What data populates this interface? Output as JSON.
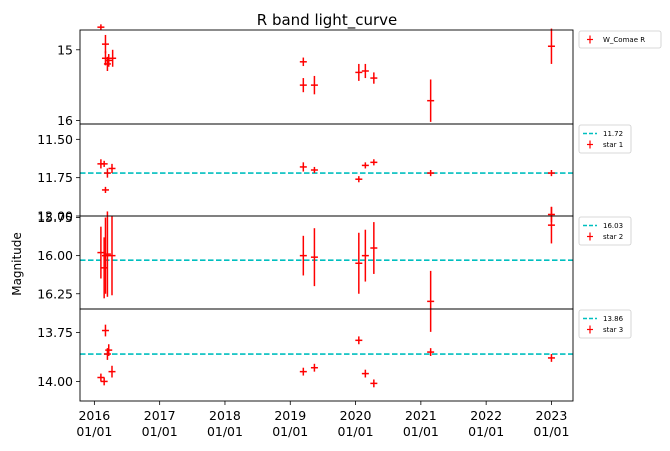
{
  "chart_data": {
    "type": "scatter",
    "title": "R band light_curve",
    "ylabel": "Magnitude",
    "x_ticks": [
      "2016\n01/01",
      "2017\n01/01",
      "2018\n01/01",
      "2019\n01/01",
      "2020\n01/01",
      "2021\n01/01",
      "2022\n01/01",
      "2023\n01/01"
    ],
    "x_tick_years": [
      2016,
      2017,
      2018,
      2019,
      2020,
      2021,
      2022,
      2023
    ],
    "xlim": [
      2015.78,
      2023.33
    ],
    "colors": {
      "data": "#ff0000",
      "reference": "#00bfbf"
    },
    "panels": [
      {
        "name": "W_Comae R",
        "legend_label": "W_Comae R",
        "ylim": [
          16.05,
          14.72
        ],
        "inverted": true,
        "yticks": [
          15,
          16
        ],
        "yticklabels": [
          "15",
          "16"
        ],
        "reference": null,
        "points": [
          {
            "x": 2016.1,
            "y": 14.68,
            "err": 0.04
          },
          {
            "x": 2016.17,
            "y": 14.92,
            "err": 0.13
          },
          {
            "x": 2016.17,
            "y": 15.12,
            "err": 0.1
          },
          {
            "x": 2016.2,
            "y": 15.2,
            "err": 0.1
          },
          {
            "x": 2016.22,
            "y": 15.15,
            "err": 0.09
          },
          {
            "x": 2016.28,
            "y": 15.12,
            "err": 0.12
          },
          {
            "x": 2019.2,
            "y": 15.17,
            "err": 0.06
          },
          {
            "x": 2019.2,
            "y": 15.5,
            "err": 0.1
          },
          {
            "x": 2019.37,
            "y": 15.5,
            "err": 0.13
          },
          {
            "x": 2020.05,
            "y": 15.32,
            "err": 0.12
          },
          {
            "x": 2020.15,
            "y": 15.3,
            "err": 0.1
          },
          {
            "x": 2020.28,
            "y": 15.4,
            "err": 0.08
          },
          {
            "x": 2021.15,
            "y": 15.72,
            "err": 0.3
          },
          {
            "x": 2023.0,
            "y": 14.95,
            "err": 0.25
          }
        ]
      },
      {
        "name": "star 1",
        "legend_label": "star 1",
        "ylim": [
          12.0,
          11.4
        ],
        "inverted": true,
        "yticks": [
          11.5,
          11.75,
          12.0
        ],
        "yticklabels": [
          "11.50",
          "11.75",
          "12.00"
        ],
        "reference": {
          "value": 11.72,
          "label": "11.72"
        },
        "points": [
          {
            "x": 2016.1,
            "y": 11.66,
            "err": 0.03
          },
          {
            "x": 2016.15,
            "y": 11.66,
            "err": 0.02
          },
          {
            "x": 2016.17,
            "y": 11.83,
            "err": 0.02
          },
          {
            "x": 2016.2,
            "y": 11.72,
            "err": 0.03
          },
          {
            "x": 2016.27,
            "y": 11.69,
            "err": 0.03
          },
          {
            "x": 2019.2,
            "y": 11.68,
            "err": 0.03
          },
          {
            "x": 2019.37,
            "y": 11.7,
            "err": 0.02
          },
          {
            "x": 2020.05,
            "y": 11.76,
            "err": 0.02
          },
          {
            "x": 2020.15,
            "y": 11.67,
            "err": 0.02
          },
          {
            "x": 2020.28,
            "y": 11.65,
            "err": 0.02
          },
          {
            "x": 2021.15,
            "y": 11.72,
            "err": 0.02
          },
          {
            "x": 2023.0,
            "y": 11.72,
            "err": 0.02
          }
        ]
      },
      {
        "name": "star 2",
        "legend_label": "star 2",
        "ylim": [
          16.35,
          15.74
        ],
        "inverted": true,
        "yticks": [
          15.75,
          16.0,
          16.25
        ],
        "yticklabels": [
          "15.75",
          "16.00",
          "16.25"
        ],
        "reference": {
          "value": 16.03,
          "label": "16.03"
        },
        "points": [
          {
            "x": 2016.1,
            "y": 15.98,
            "err": 0.17
          },
          {
            "x": 2016.15,
            "y": 16.08,
            "err": 0.2
          },
          {
            "x": 2016.17,
            "y": 16.0,
            "err": 0.25
          },
          {
            "x": 2016.2,
            "y": 15.99,
            "err": 0.28
          },
          {
            "x": 2016.27,
            "y": 16.0,
            "err": 0.26
          },
          {
            "x": 2019.2,
            "y": 16.0,
            "err": 0.13
          },
          {
            "x": 2019.37,
            "y": 16.01,
            "err": 0.19
          },
          {
            "x": 2020.05,
            "y": 16.05,
            "err": 0.2
          },
          {
            "x": 2020.15,
            "y": 16.0,
            "err": 0.17
          },
          {
            "x": 2020.28,
            "y": 15.95,
            "err": 0.17
          },
          {
            "x": 2021.15,
            "y": 16.3,
            "err": 0.2
          },
          {
            "x": 2023.0,
            "y": 15.8,
            "err": 0.12
          },
          {
            "x": 2023.0,
            "y": 15.73,
            "err": 0.05
          }
        ]
      },
      {
        "name": "star 3",
        "legend_label": "star 3",
        "ylim": [
          14.1,
          13.63
        ],
        "inverted": true,
        "yticks": [
          13.75,
          14.0
        ],
        "yticklabels": [
          "13.75",
          "14.00"
        ],
        "reference": {
          "value": 13.86,
          "label": "13.86"
        },
        "points": [
          {
            "x": 2016.1,
            "y": 13.98,
            "err": 0.02
          },
          {
            "x": 2016.15,
            "y": 14.0,
            "err": 0.02
          },
          {
            "x": 2016.17,
            "y": 13.74,
            "err": 0.03
          },
          {
            "x": 2016.2,
            "y": 13.86,
            "err": 0.03
          },
          {
            "x": 2016.22,
            "y": 13.84,
            "err": 0.03
          },
          {
            "x": 2016.27,
            "y": 13.95,
            "err": 0.03
          },
          {
            "x": 2019.2,
            "y": 13.95,
            "err": 0.02
          },
          {
            "x": 2019.37,
            "y": 13.93,
            "err": 0.02
          },
          {
            "x": 2020.05,
            "y": 13.79,
            "err": 0.02
          },
          {
            "x": 2020.15,
            "y": 13.96,
            "err": 0.02
          },
          {
            "x": 2020.28,
            "y": 14.01,
            "err": 0.02
          },
          {
            "x": 2021.15,
            "y": 13.85,
            "err": 0.02
          },
          {
            "x": 2023.0,
            "y": 13.88,
            "err": 0.02
          }
        ]
      }
    ]
  }
}
